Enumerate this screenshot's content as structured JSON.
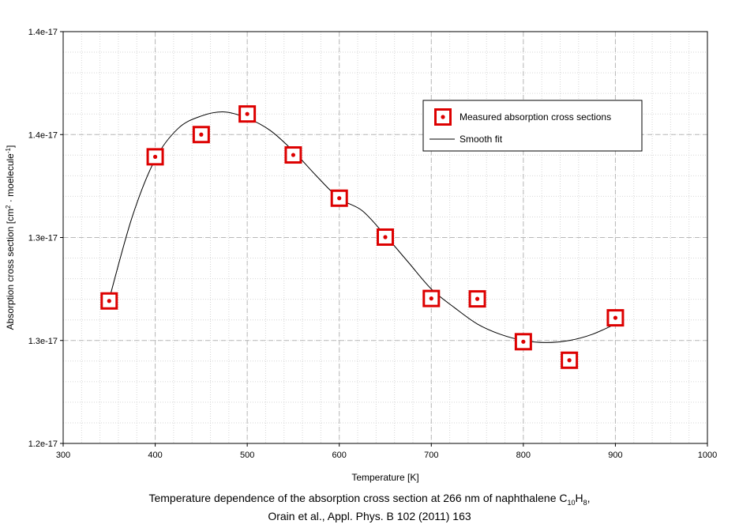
{
  "chart_data": {
    "type": "scatter",
    "xlabel": "Temperature [K]",
    "ylabel_parts": [
      "Absorption cross section [cm",
      "2",
      " · moelecule",
      "-1",
      "]"
    ],
    "xlim": [
      300,
      1000
    ],
    "ylim": [
      1.2e-17,
      1.4e-17
    ],
    "x_ticks": [
      {
        "value": 300,
        "label": "300"
      },
      {
        "value": 400,
        "label": "400"
      },
      {
        "value": 500,
        "label": "500"
      },
      {
        "value": 600,
        "label": "600"
      },
      {
        "value": 700,
        "label": "700"
      },
      {
        "value": 800,
        "label": "800"
      },
      {
        "value": 900,
        "label": "900"
      },
      {
        "value": 1000,
        "label": "1000"
      }
    ],
    "y_ticks": [
      {
        "value": 1.2e-17,
        "label": "1.2e-17"
      },
      {
        "value": 1.25e-17,
        "label": "1.3e-17"
      },
      {
        "value": 1.3e-17,
        "label": "1.3e-17"
      },
      {
        "value": 1.35e-17,
        "label": "1.4e-17"
      },
      {
        "value": 1.4e-17,
        "label": "1.4e-17"
      }
    ],
    "grid": true,
    "legend_position": "top-right",
    "series": [
      {
        "name": "Measured absorption cross sections",
        "kind": "markers",
        "color": "#dd0000",
        "x": [
          350,
          400,
          450,
          500,
          550,
          600,
          650,
          700,
          750,
          800,
          850,
          900
        ],
        "y": [
          1.2692e-17,
          1.3392e-17,
          1.35e-17,
          1.36e-17,
          1.3401e-17,
          1.3191e-17,
          1.3002e-17,
          1.2704e-17,
          1.2702e-17,
          1.2494e-17,
          1.2404e-17,
          1.261e-17
        ]
      },
      {
        "name": "Smooth fit",
        "kind": "line",
        "color": "#000000",
        "x": [
          350,
          375,
          400,
          425,
          450,
          475,
          500,
          525,
          550,
          575,
          600,
          625,
          650,
          675,
          700,
          725,
          750,
          775,
          800,
          825,
          850,
          875,
          900
        ],
        "y": [
          1.27e-17,
          1.31e-17,
          1.338e-17,
          1.353e-17,
          1.359e-17,
          1.361e-17,
          1.358e-17,
          1.352e-17,
          1.342e-17,
          1.33e-17,
          1.319e-17,
          1.313e-17,
          1.301e-17,
          1.288e-17,
          1.275e-17,
          1.266e-17,
          1.258e-17,
          1.253e-17,
          1.25e-17,
          1.249e-17,
          1.25e-17,
          1.253e-17,
          1.258e-17
        ]
      }
    ]
  },
  "caption": {
    "line1_before": "Temperature dependence of the absorption cross section at 266 nm of naphthalene C",
    "line1_sub1": "10",
    "line1_mid": "H",
    "line1_sub2": "8",
    "line1_after": ",",
    "line2": "Orain et al., Appl. Phys. B 102 (2011) 163"
  }
}
